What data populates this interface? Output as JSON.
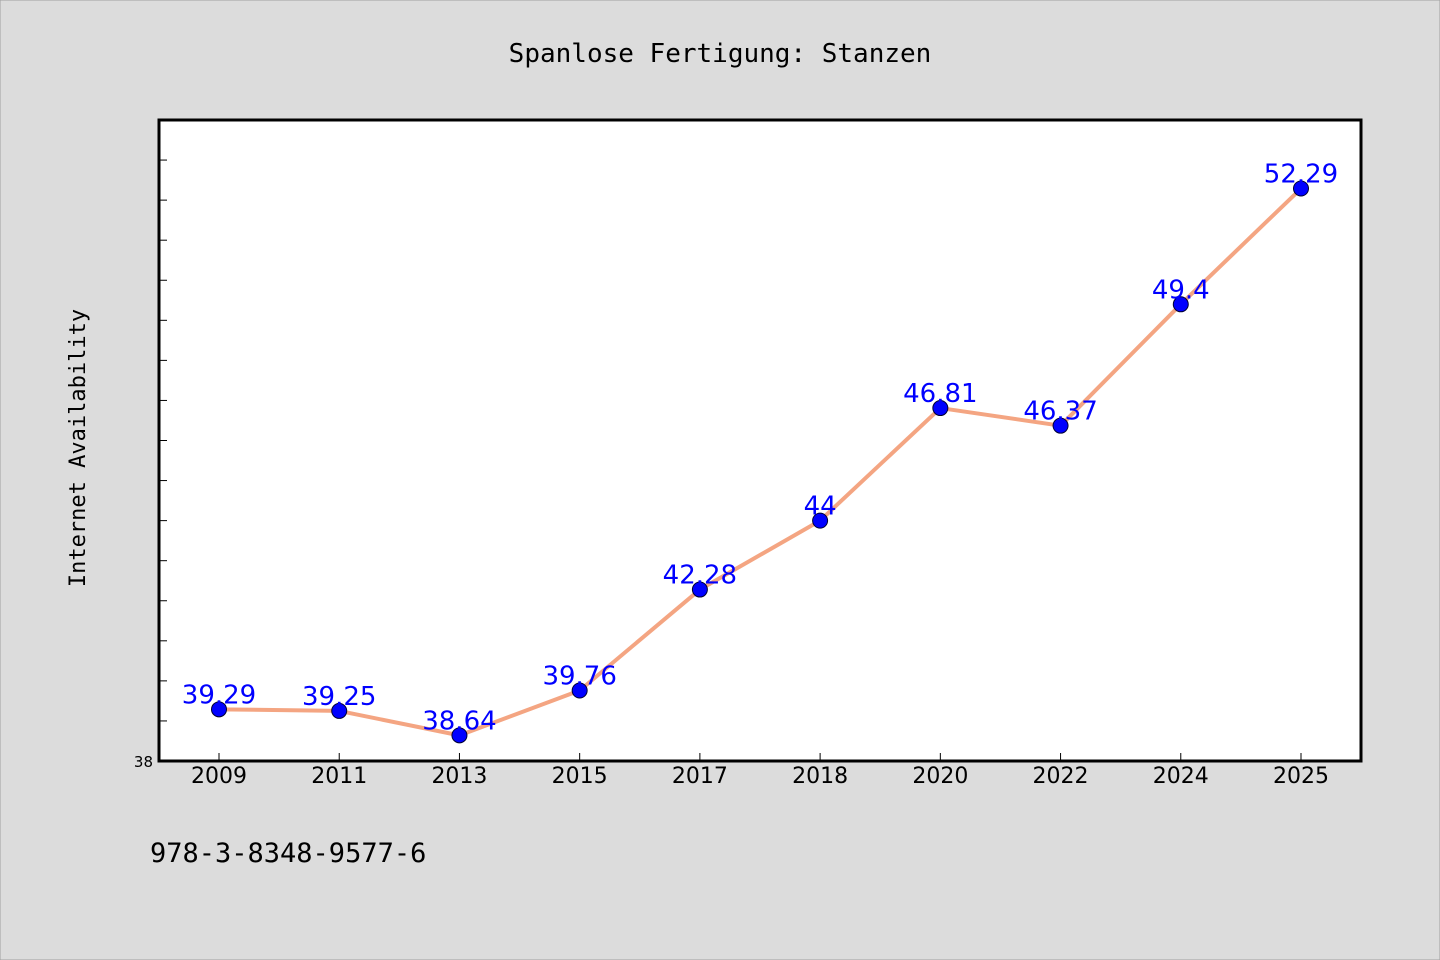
{
  "chart_data": {
    "type": "line",
    "title": "Spanlose Fertigung: Stanzen",
    "xlabel": "",
    "ylabel": "Internet Availability",
    "categories": [
      "2009",
      "2011",
      "2013",
      "2015",
      "2017",
      "2018",
      "2020",
      "2022",
      "2024",
      "2025"
    ],
    "series": [
      {
        "values": [
          39.29,
          39.25,
          38.64,
          39.76,
          42.28,
          44,
          46.81,
          46.37,
          49.4,
          52.29
        ],
        "labels": [
          "39.29",
          "39.25",
          "38.64",
          "39.76",
          "42.28",
          "44",
          "46.81",
          "46.37",
          "49.4",
          "52.29"
        ],
        "line_color": "#f4a582",
        "marker_color": "#0000ff"
      }
    ],
    "ylim": [
      38,
      54
    ],
    "y_tick_labels": [
      "38"
    ],
    "grid": false,
    "legend": "none",
    "background_color": "#dcdcdc",
    "plot_background_color": "#ffffff"
  },
  "footer": {
    "text": "978-3-8348-9577-6"
  }
}
